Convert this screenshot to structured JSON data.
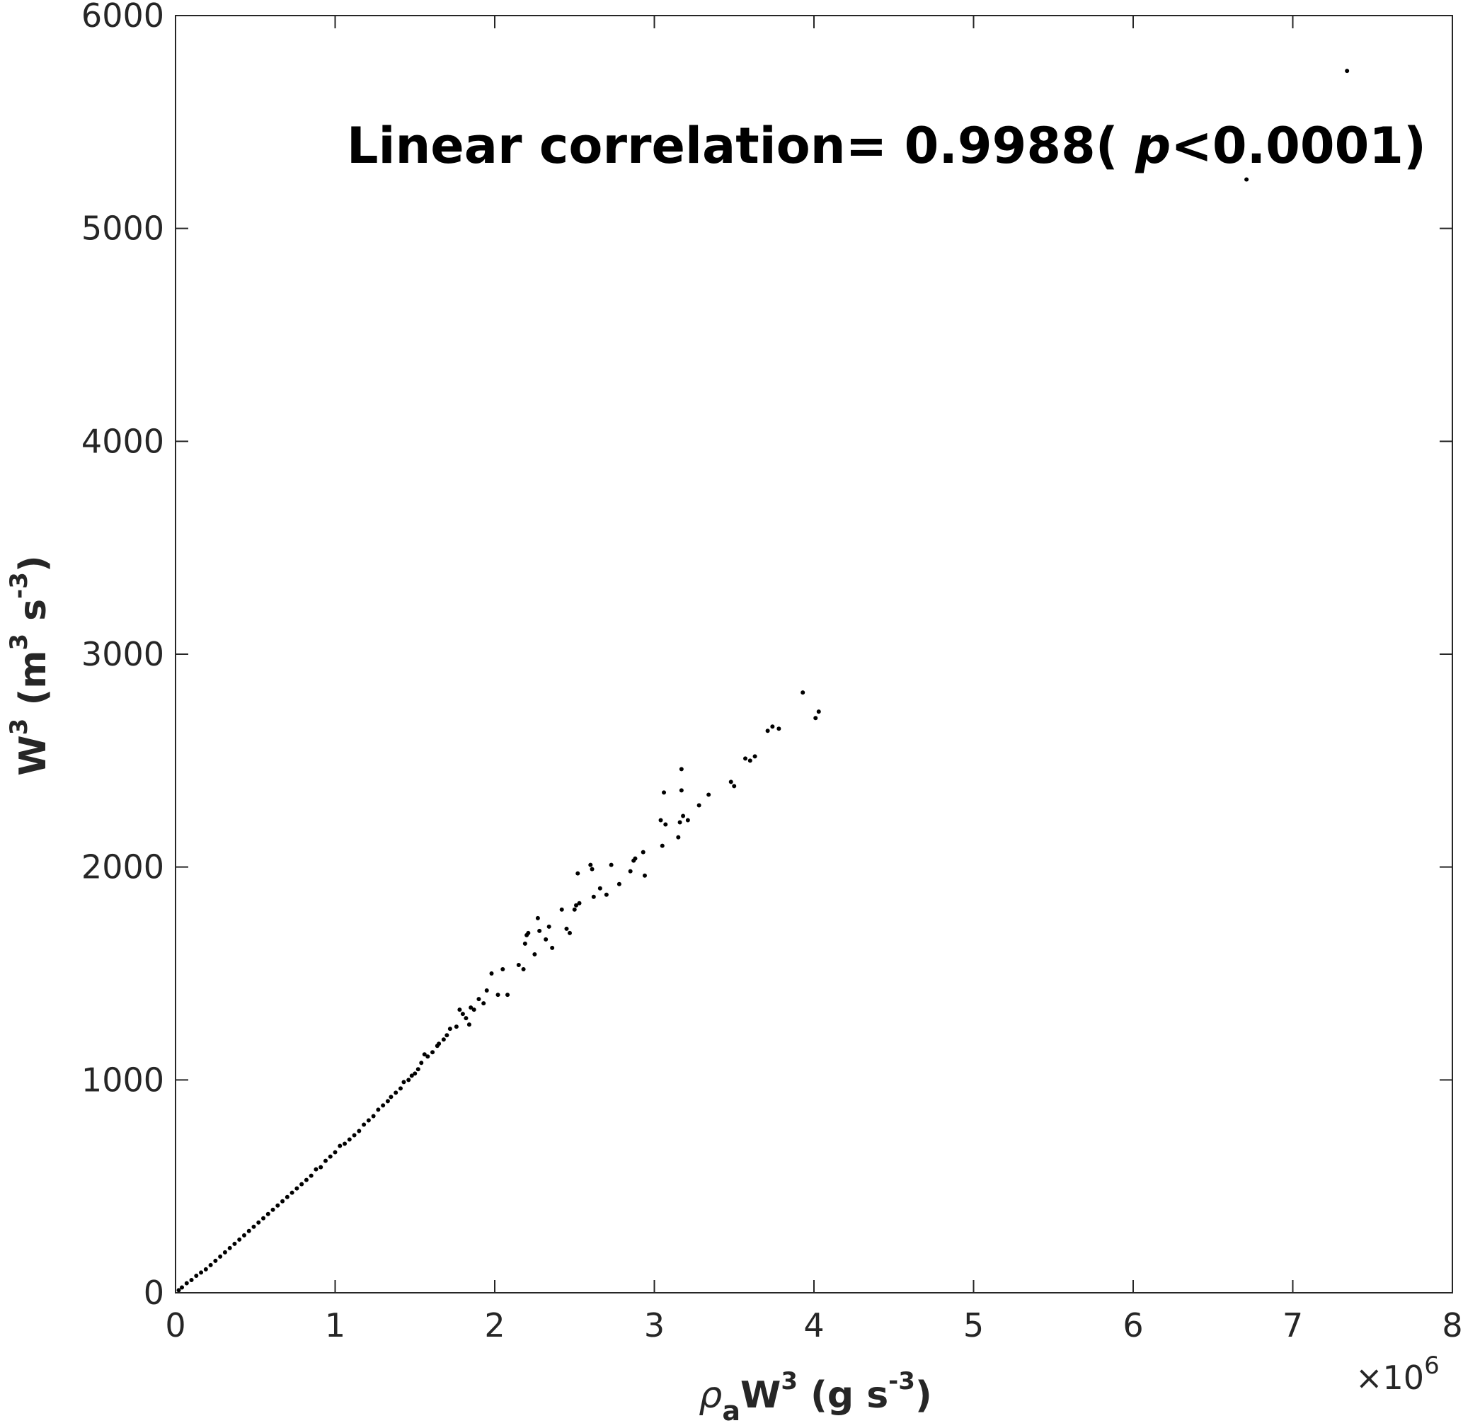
{
  "chart_data": {
    "type": "scatter",
    "title": "",
    "annotation": {
      "prefix": "Linear correlation= 0.9988( ",
      "p_symbol": "p",
      "suffix": "<0.0001)"
    },
    "xlabel": {
      "rho": "ρ",
      "rho_sub": "a",
      "main": "W",
      "sup": "3",
      "unit_open": " (g s",
      "unit_sup": "-3",
      "unit_close": ")"
    },
    "ylabel": {
      "main": "W",
      "sup": "3",
      "unit_open": " (m",
      "unit_sup1": "3",
      "unit_mid": " s",
      "unit_sup2": "-3",
      "unit_close": ")"
    },
    "x_multiplier": {
      "base": "×10",
      "exp": "6"
    },
    "xlim": [
      0,
      8000000
    ],
    "ylim": [
      0,
      6000
    ],
    "xticks": [
      0,
      1000000,
      2000000,
      3000000,
      4000000,
      5000000,
      6000000,
      7000000,
      8000000
    ],
    "xtick_labels": [
      "0",
      "1",
      "2",
      "3",
      "4",
      "5",
      "6",
      "7",
      "8"
    ],
    "yticks": [
      0,
      1000,
      2000,
      3000,
      4000,
      5000,
      6000
    ],
    "ytick_labels": [
      "0",
      "1000",
      "2000",
      "3000",
      "4000",
      "5000",
      "6000"
    ],
    "grid": false,
    "marker_color": "#000000",
    "series": [
      {
        "x": [
          7340000,
          6710000,
          3930000,
          4010000,
          4030000,
          3740000,
          3780000,
          3710000,
          3630000,
          3570000,
          3600000,
          3480000,
          3500000,
          3340000,
          3280000,
          3210000,
          3170000,
          3170000,
          3180000,
          3160000,
          3150000,
          3070000,
          3040000,
          3050000,
          3060000,
          2930000,
          2940000,
          2880000,
          2870000,
          2850000,
          2730000,
          2780000,
          2700000,
          2660000,
          2620000,
          2610000,
          2600000,
          2530000,
          2510000,
          2520000,
          2420000,
          2450000,
          2470000,
          2500000,
          2340000,
          2320000,
          2360000,
          2280000,
          2270000,
          2250000,
          2200000,
          2180000,
          2210000,
          2190000,
          2150000,
          2050000,
          2020000,
          2080000,
          1980000,
          1930000,
          1950000,
          1900000,
          1850000,
          1870000,
          1820000,
          1840000,
          1800000,
          1780000,
          1760000,
          1720000,
          1700000,
          1680000,
          1650000,
          1640000,
          1610000,
          1580000,
          1560000,
          1540000,
          1520000,
          1500000,
          1480000,
          1460000,
          1430000,
          1410000,
          1380000,
          1350000,
          1330000,
          1300000,
          1270000,
          1240000,
          1210000,
          1180000,
          1150000,
          1120000,
          1090000,
          1060000,
          1030000,
          1000000,
          970000,
          940000,
          910000,
          880000,
          850000,
          820000,
          790000,
          760000,
          730000,
          700000,
          670000,
          640000,
          610000,
          580000,
          550000,
          520000,
          490000,
          460000,
          430000,
          400000,
          370000,
          340000,
          310000,
          280000,
          250000,
          220000,
          190000,
          160000,
          130000,
          100000,
          70000,
          40000,
          20000
        ],
        "y": [
          5740,
          5230,
          2820,
          2700,
          2730,
          2660,
          2650,
          2640,
          2520,
          2510,
          2500,
          2400,
          2380,
          2340,
          2290,
          2220,
          2460,
          2360,
          2240,
          2210,
          2140,
          2200,
          2220,
          2100,
          2350,
          2070,
          1960,
          2040,
          2030,
          1980,
          2010,
          1920,
          1870,
          1900,
          1860,
          1990,
          2010,
          1830,
          1820,
          1970,
          1800,
          1710,
          1690,
          1800,
          1720,
          1660,
          1620,
          1700,
          1760,
          1590,
          1680,
          1520,
          1690,
          1640,
          1540,
          1520,
          1400,
          1400,
          1500,
          1360,
          1420,
          1380,
          1340,
          1330,
          1290,
          1260,
          1310,
          1330,
          1250,
          1240,
          1210,
          1190,
          1170,
          1160,
          1130,
          1110,
          1120,
          1080,
          1050,
          1030,
          1020,
          1000,
          990,
          960,
          940,
          920,
          900,
          880,
          860,
          830,
          810,
          790,
          760,
          740,
          720,
          700,
          690,
          660,
          640,
          620,
          590,
          580,
          550,
          530,
          510,
          490,
          470,
          450,
          430,
          410,
          390,
          370,
          350,
          330,
          310,
          290,
          270,
          250,
          230,
          210,
          190,
          170,
          150,
          130,
          110,
          95,
          80,
          60,
          45,
          25,
          12
        ]
      }
    ]
  }
}
